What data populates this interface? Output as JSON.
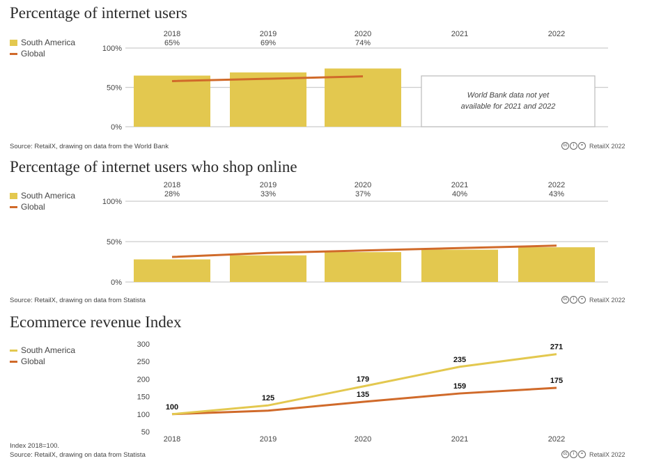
{
  "colors": {
    "south_america": "#e3c84f",
    "global": "#d06a2a",
    "grid": "#cccccc"
  },
  "legend": {
    "south_america": "South America",
    "global": "Global"
  },
  "credit": {
    "cc": "cc",
    "by": "i",
    "nd": "=",
    "text": "RetailX 2022"
  },
  "chart_data": [
    {
      "type": "bar",
      "title": "Percentage of internet users",
      "categories": [
        "2018",
        "2019",
        "2020",
        "2021",
        "2022"
      ],
      "value_labels": [
        "65%",
        "69%",
        "74%",
        "",
        ""
      ],
      "series": [
        {
          "name": "South America",
          "kind": "bar",
          "values": [
            65,
            69,
            74,
            null,
            null
          ]
        },
        {
          "name": "Global",
          "kind": "line",
          "values": [
            58,
            61,
            64,
            null,
            null
          ]
        }
      ],
      "yticks": [
        "0%",
        "50%",
        "100%"
      ],
      "ylim": [
        0,
        100
      ],
      "note": [
        "World Bank data not yet",
        "available for 2021 and 2022"
      ],
      "source": "Source: RetailX, drawing on data from the World Bank"
    },
    {
      "type": "bar",
      "title": "Percentage of internet users who shop online",
      "categories": [
        "2018",
        "2019",
        "2020",
        "2021",
        "2022"
      ],
      "value_labels": [
        "28%",
        "33%",
        "37%",
        "40%",
        "43%"
      ],
      "series": [
        {
          "name": "South America",
          "kind": "bar",
          "values": [
            28,
            33,
            37,
            40,
            43
          ]
        },
        {
          "name": "Global",
          "kind": "line",
          "values": [
            31,
            36,
            39,
            42,
            45
          ]
        }
      ],
      "yticks": [
        "0%",
        "50%",
        "100%"
      ],
      "ylim": [
        0,
        100
      ],
      "source": "Source: RetailX, drawing on data from Statista"
    },
    {
      "type": "line",
      "title": "Ecommerce revenue Index",
      "categories": [
        "2018",
        "2019",
        "2020",
        "2021",
        "2022"
      ],
      "series": [
        {
          "name": "South America",
          "values": [
            100,
            125,
            179,
            235,
            271
          ],
          "labels": [
            "100",
            "125",
            "179",
            "235",
            "271"
          ]
        },
        {
          "name": "Global",
          "values": [
            100,
            110,
            135,
            159,
            175
          ],
          "labels": [
            "",
            "",
            "135",
            "159",
            "175"
          ]
        }
      ],
      "yticks": [
        "50",
        "100",
        "150",
        "200",
        "250",
        "300"
      ],
      "ylim": [
        50,
        300
      ],
      "footnote": "Index 2018=100.",
      "source": "Source: RetailX, drawing on data from Statista"
    }
  ]
}
